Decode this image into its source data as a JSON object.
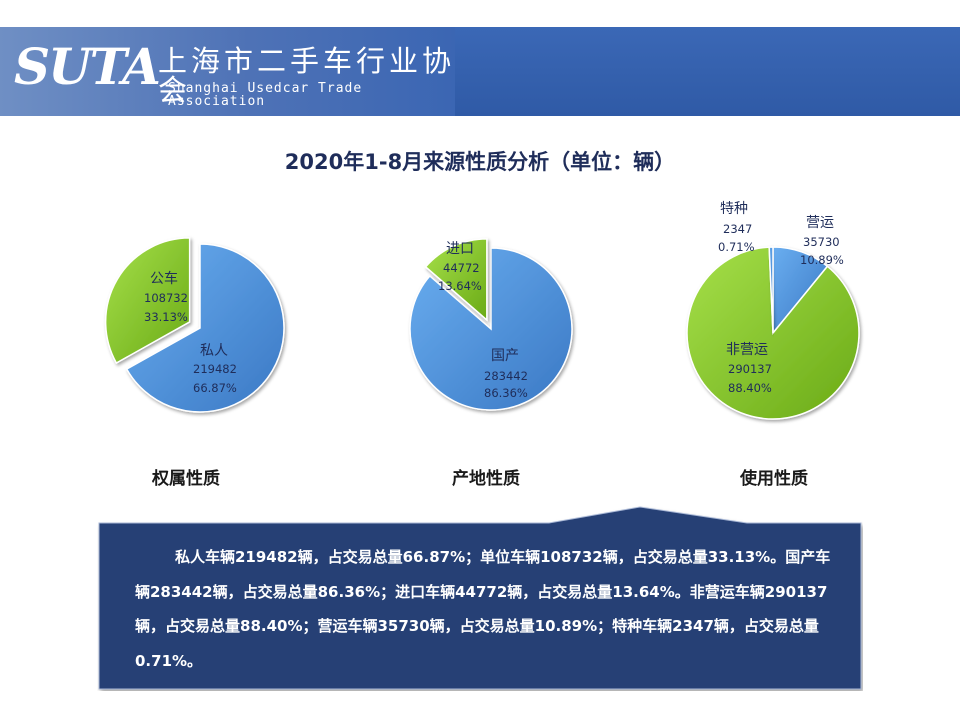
{
  "header": {
    "logo_text": "SUTA",
    "org_name_cn": "上海市二手车行业协会",
    "org_name_en": "Shanghai Usedcar Trade Association"
  },
  "title": "2020年1-8月来源性质分析（单位：辆）",
  "captions": [
    "权属性质",
    "产地性质",
    "使用性质"
  ],
  "chart_data": [
    {
      "type": "pie",
      "title": "权属性质",
      "slices": [
        {
          "label": "私人",
          "value": 219482,
          "percent": "66.87%",
          "color": "#4a8fd6"
        },
        {
          "label": "公车",
          "value": 108732,
          "percent": "33.13%",
          "color": "#7fc31f"
        }
      ]
    },
    {
      "type": "pie",
      "title": "产地性质",
      "slices": [
        {
          "label": "国产",
          "value": 283442,
          "percent": "86.36%",
          "color": "#4a8fd6"
        },
        {
          "label": "进口",
          "value": 44772,
          "percent": "13.64%",
          "color": "#7fc31f"
        }
      ]
    },
    {
      "type": "pie",
      "title": "使用性质",
      "slices": [
        {
          "label": "营运",
          "value": 35730,
          "percent": "10.89%",
          "color": "#4a8fd6"
        },
        {
          "label": "非营运",
          "value": 290137,
          "percent": "88.40%",
          "color": "#7fc31f"
        },
        {
          "label": "特种",
          "value": 2347,
          "percent": "0.71%",
          "color": "#4a8fd6"
        }
      ]
    }
  ],
  "summary": "私人车辆219482辆，占交易总量66.87%；单位车辆108732辆，占交易总量33.13%。国产车辆283442辆，占交易总量86.36%；进口车辆44772辆，占交易总量13.64%。非营运车辆290137辆，占交易总量88.40%；营运车辆35730辆，占交易总量10.89%；特种车辆2347辆，占交易总量0.71%。"
}
